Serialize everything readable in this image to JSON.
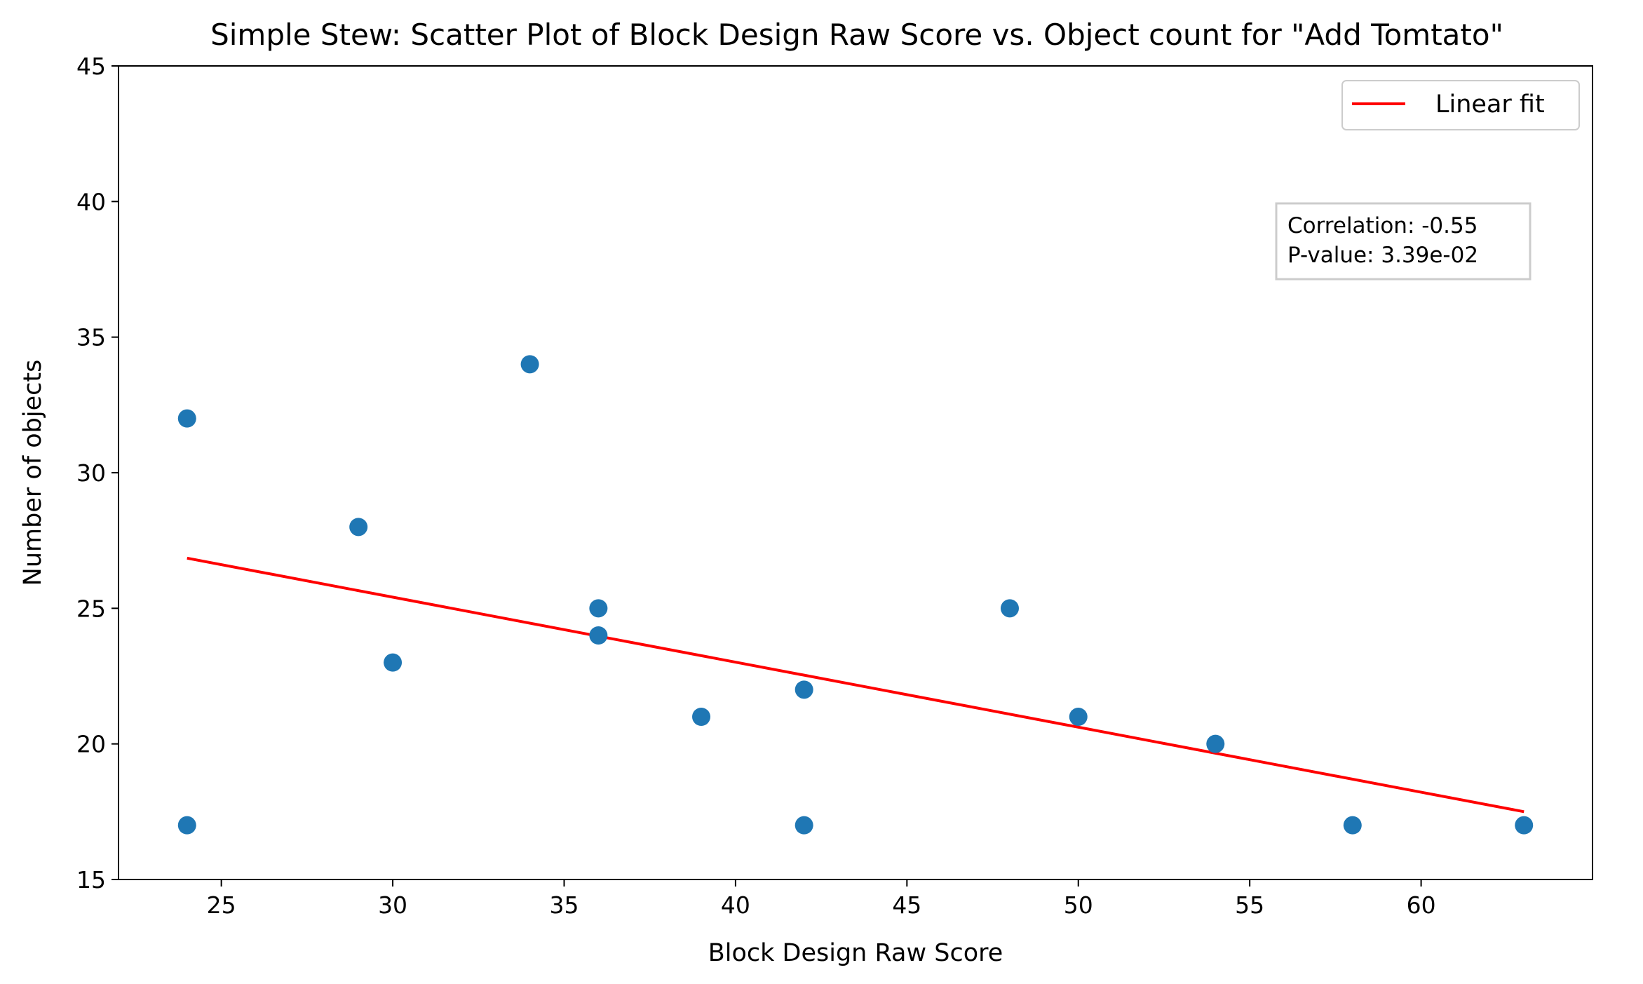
{
  "chart_data": {
    "type": "scatter",
    "title": "Simple Stew: Scatter Plot of Block Design Raw Score vs. Object count for \"Add Tomtato\"",
    "xlabel": "Block Design Raw Score",
    "ylabel": "Number of objects",
    "xlim": [
      22,
      65
    ],
    "ylim": [
      15,
      45
    ],
    "xticks": [
      25,
      30,
      35,
      40,
      45,
      50,
      55,
      60
    ],
    "yticks": [
      15,
      20,
      25,
      30,
      35,
      40,
      45
    ],
    "grid": false,
    "points": [
      {
        "x": 24,
        "y": 32
      },
      {
        "x": 24,
        "y": 17
      },
      {
        "x": 29,
        "y": 28
      },
      {
        "x": 30,
        "y": 23
      },
      {
        "x": 34,
        "y": 34
      },
      {
        "x": 36,
        "y": 25
      },
      {
        "x": 36,
        "y": 24
      },
      {
        "x": 39,
        "y": 21
      },
      {
        "x": 42,
        "y": 22
      },
      {
        "x": 42,
        "y": 17
      },
      {
        "x": 48,
        "y": 25
      },
      {
        "x": 50,
        "y": 21
      },
      {
        "x": 54,
        "y": 20
      },
      {
        "x": 58,
        "y": 17
      },
      {
        "x": 63,
        "y": 17
      }
    ],
    "fit_line": {
      "name": "Linear fit",
      "x": [
        24,
        63
      ],
      "y": [
        26.85,
        17.5
      ],
      "color": "#ff0000"
    },
    "point_color": "#1f77b4",
    "legend": {
      "position": "top-right",
      "entries": [
        "Linear fit"
      ]
    },
    "annotation": {
      "lines": [
        "Correlation: -0.55",
        "P-value: 3.39e-02"
      ],
      "position": "upper-right"
    }
  }
}
